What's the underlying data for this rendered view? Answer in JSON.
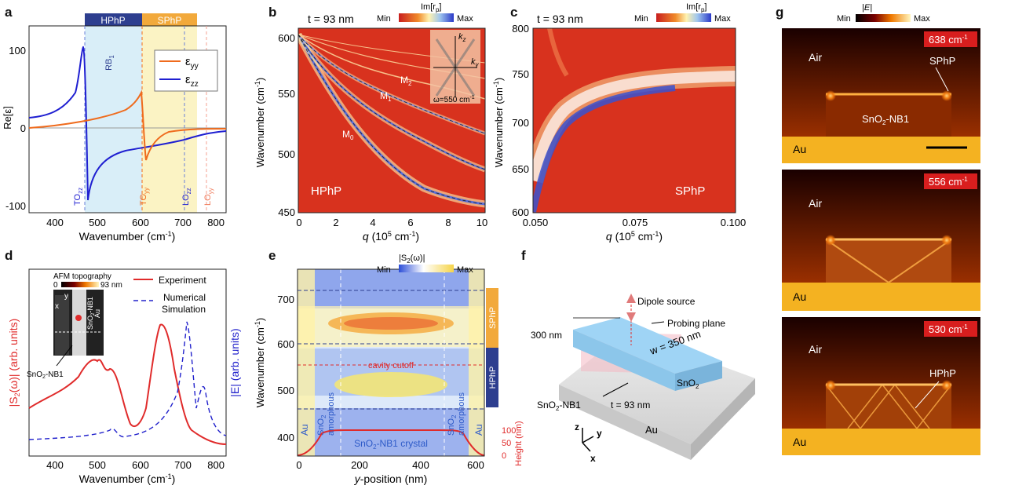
{
  "panel_labels": [
    "a",
    "b",
    "c",
    "d",
    "e",
    "f",
    "g"
  ],
  "panel_a": {
    "bands": [
      "HPhP",
      "SPhP"
    ],
    "band_colors": {
      "HPhP": "#2d3e8f",
      "SPhP": "#f2a93b",
      "hphp_fill": "#d9eef8",
      "sphp_fill": "#fbf3c4"
    },
    "rb_label": "RB",
    "rb_sub": "1",
    "ylabel": "Re[ε]",
    "xlabel": "Wavenumber (cm",
    "xlabel_sup": "-1",
    "xlabel_end": ")",
    "xticks": [
      "400",
      "500",
      "600",
      "700",
      "800"
    ],
    "yticks": [
      "100",
      "0",
      "-100"
    ],
    "legend": [
      {
        "main": "ε",
        "sub": "yy",
        "color": "#ef6b1d"
      },
      {
        "main": "ε",
        "sub": "zz",
        "color": "#1f1fd1"
      }
    ],
    "markers": [
      {
        "main": "TO",
        "sub": "zz",
        "color": "#1f1fd1"
      },
      {
        "main": "TO",
        "sub": "yy",
        "color": "#ef6b1d"
      },
      {
        "main": "LO",
        "sub": "zz",
        "color": "#1f1fd1"
      },
      {
        "main": "LO",
        "sub": "yy",
        "color": "#f07a5a"
      }
    ]
  },
  "panel_b": {
    "thickness": "t = 93 nm",
    "cbar_title": "Im[r",
    "cbar_sub": "p",
    "cbar_min": "Min",
    "cbar_max": "Max",
    "ylabel": "Wavenumber (cm",
    "xlabel_q": "q",
    "xlabel_rest": " (10",
    "xlabel_sup": "5",
    "xlabel_end": " cm",
    "xticks": [
      "0",
      "2",
      "4",
      "6",
      "8",
      "10"
    ],
    "yticks": [
      "600",
      "550",
      "500",
      "450"
    ],
    "modes": [
      {
        "main": "M",
        "sub": "0"
      },
      {
        "main": "M",
        "sub": "1"
      },
      {
        "main": "M",
        "sub": "2"
      }
    ],
    "region": "HPhP",
    "inset_kz": "k",
    "inset_kz_sub": "z",
    "inset_ky": "k",
    "inset_ky_sub": "y",
    "inset_freq": "ω=550 cm",
    "inset_freq_sup": "-1"
  },
  "panel_c": {
    "thickness": "t = 93 nm",
    "cbar_title": "Im[r",
    "cbar_sub": "p",
    "cbar_min": "Min",
    "cbar_max": "Max",
    "ylabel": "Wavenumber (cm",
    "xticks": [
      "0.050",
      "0.075",
      "0.100"
    ],
    "yticks": [
      "800",
      "750",
      "700",
      "650",
      "600"
    ],
    "region": "SPhP"
  },
  "panel_d": {
    "inset_title": "AFM topography",
    "inset_scale_min": "0",
    "inset_scale_max": "93 nm",
    "inset_sample": "SnO",
    "inset_au": "Au",
    "inset_x": "x",
    "inset_y": "y",
    "pointer_label": "SnO",
    "pointer_tail": "-NB1",
    "legend_exp": "Experiment",
    "legend_sim_1": "Numerical",
    "legend_sim_2": "Simulation",
    "ylabel_left": "|S",
    "ylabel_left_tail": "(ω)| (arb. units)",
    "ylabel_right": "|E| (arb. units)",
    "xlabel": "Wavenumber (cm",
    "xticks": [
      "400",
      "500",
      "600",
      "700",
      "800"
    ],
    "colors": {
      "experiment": "#e02b2b",
      "simulation": "#2222cc"
    }
  },
  "panel_e": {
    "cbar_title": "|S",
    "cbar_tail": "(ω)|",
    "cbar_min": "Min",
    "cbar_max": "Max",
    "ylabel": "Wavenumber (cm",
    "xlabel_y": "y",
    "xlabel_rest": "-position (nm)",
    "xticks": [
      "0",
      "200",
      "400",
      "600"
    ],
    "yticks": [
      "700",
      "600",
      "500",
      "400"
    ],
    "right_ticks": [
      "100",
      "50",
      "0"
    ],
    "right_label": "Height (nm)",
    "cavity": "cavity cutoff",
    "crystal": "SnO",
    "crystal_tail": "-NB1 crystal",
    "au": "Au",
    "amorphous": "amorphous",
    "sno2": "SnO",
    "bands": [
      "SPhP",
      "HPhP"
    ]
  },
  "panel_f": {
    "dipole": "Dipole source",
    "probing": "Probing plane",
    "height": "300 nm",
    "width": "w = 350 nm",
    "thick": "t = 93 nm",
    "sno2": "SnO",
    "sample": "SnO",
    "sample_tail": "-NB1",
    "substrate": "Au",
    "ax_z": "z",
    "ax_y": "y",
    "ax_x": "x"
  },
  "panel_g": {
    "cbar_title": "|E|",
    "cbar_min": "Min",
    "cbar_max": "Max",
    "subpanels": [
      {
        "freq": "638 cm",
        "air": "Air",
        "au": "Au",
        "label": "SPhP",
        "label2": "SnO",
        "label2_tail": "-NB1"
      },
      {
        "freq": "556 cm",
        "air": "Air",
        "au": "Au"
      },
      {
        "freq": "530 cm",
        "air": "Air",
        "au": "Au",
        "label": "HPhP"
      }
    ],
    "freq_sup": "-1"
  }
}
